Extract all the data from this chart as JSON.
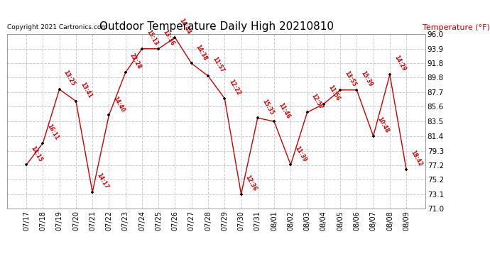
{
  "title": "Outdoor Temperature Daily High 20210810",
  "copyright": "Copyright 2021 Cartronics.com",
  "ylabel": "Temperature (°F)",
  "dates": [
    "07/17",
    "07/18",
    "07/19",
    "07/20",
    "07/21",
    "07/22",
    "07/23",
    "07/24",
    "07/25",
    "07/26",
    "07/27",
    "07/28",
    "07/29",
    "07/30",
    "07/31",
    "08/01",
    "08/02",
    "08/03",
    "08/04",
    "08/05",
    "08/06",
    "08/07",
    "08/08",
    "08/09"
  ],
  "temps": [
    77.3,
    80.4,
    88.1,
    86.4,
    73.4,
    84.4,
    90.5,
    93.9,
    93.9,
    95.5,
    91.8,
    90.0,
    86.8,
    73.1,
    84.0,
    83.5,
    77.3,
    84.8,
    86.0,
    88.0,
    88.0,
    81.4,
    90.2,
    76.6
  ],
  "times": [
    "14:15",
    "16:11",
    "13:25",
    "13:41",
    "14:17",
    "14:40",
    "22:28",
    "15:13",
    "13:36",
    "14:44",
    "14:38",
    "11:57",
    "12:22",
    "12:36",
    "15:35",
    "11:46",
    "11:39",
    "12:57",
    "11:56",
    "13:55",
    "15:39",
    "10:48",
    "14:29",
    "18:42"
  ],
  "ylim_min": 71.0,
  "ylim_max": 96.0,
  "yticks": [
    71.0,
    73.1,
    75.2,
    77.2,
    79.3,
    81.4,
    83.5,
    85.6,
    87.7,
    89.8,
    91.8,
    93.9,
    96.0
  ],
  "line_color": "#cc0000",
  "marker_color": "#000000",
  "label_color": "#cc0000",
  "title_color": "#000000",
  "copyright_color": "#000000",
  "ylabel_color": "#cc0000",
  "background_color": "#ffffff",
  "grid_color": "#cccccc"
}
